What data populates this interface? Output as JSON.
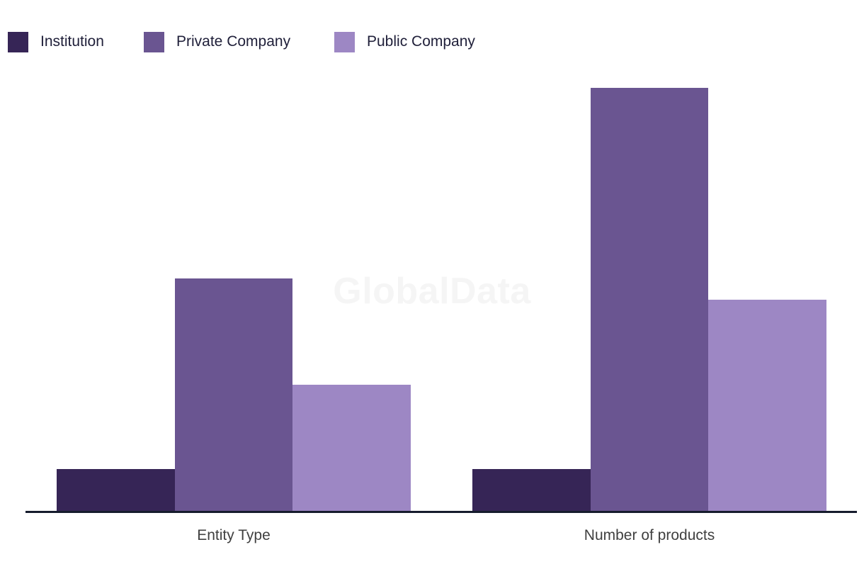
{
  "watermark": {
    "text": "GlobalData"
  },
  "chart_data": {
    "type": "bar",
    "title": "",
    "xlabel": "",
    "ylabel": "",
    "categories": [
      "Entity Type",
      "Number of products"
    ],
    "series": [
      {
        "name": "Institution",
        "color": "#362556",
        "values": [
          2,
          2
        ]
      },
      {
        "name": "Private Company",
        "color": "#6A5591",
        "values": [
          11,
          20
        ]
      },
      {
        "name": "Public Company",
        "color": "#9D87C4",
        "values": [
          6,
          10
        ]
      }
    ],
    "ylim": [
      0,
      21
    ],
    "grid": false,
    "y_axis_visible": false,
    "legend_position": "top-left",
    "axis_color": "#161C2D",
    "category_label_color": "#404040",
    "watermark_color": "#F5F5F5"
  }
}
